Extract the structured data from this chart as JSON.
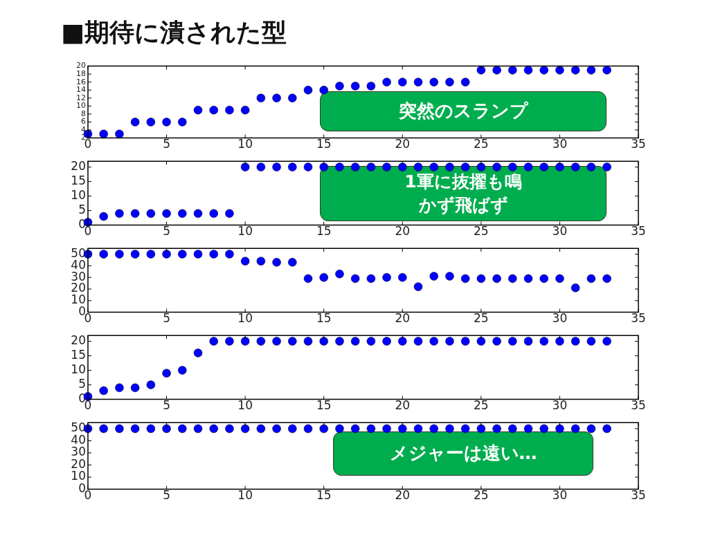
{
  "chart_data": [
    {
      "type": "scatter",
      "title": "■期待に潰された型",
      "x": [
        0,
        1,
        2,
        3,
        4,
        5,
        6,
        7,
        8,
        9,
        10,
        11,
        12,
        13,
        14,
        15,
        16,
        17,
        18,
        19,
        20,
        21,
        22,
        23,
        24,
        25,
        26,
        27,
        28,
        29,
        30,
        31,
        32,
        33
      ],
      "series": [
        {
          "color": "#0000ff",
          "values": [
            3,
            3,
            3,
            6,
            6,
            6,
            6,
            9,
            9,
            9,
            9,
            12,
            12,
            12,
            14,
            14,
            15,
            15,
            15,
            16,
            16,
            16,
            16,
            16,
            16,
            19,
            19,
            19,
            19,
            19,
            19,
            19,
            19,
            19
          ]
        }
      ],
      "xlim": [
        0,
        35
      ],
      "xticks": [
        0,
        5,
        10,
        15,
        20,
        25,
        30,
        35
      ],
      "ylim": [
        2,
        20
      ],
      "yticks": [
        2,
        4,
        6,
        8,
        10,
        12,
        14,
        16,
        18,
        20
      ],
      "marker": "circle",
      "grid": false,
      "legend": false,
      "annotations": [
        "突然のスランプ"
      ]
    },
    {
      "type": "scatter",
      "x": [
        0,
        1,
        2,
        3,
        4,
        5,
        6,
        7,
        8,
        9,
        10,
        11,
        12,
        13,
        14,
        15,
        16,
        17,
        18,
        19,
        20,
        21,
        22,
        23,
        24,
        25,
        26,
        27,
        28,
        29,
        30,
        31,
        32,
        33
      ],
      "series": [
        {
          "color": "#0000ff",
          "values": [
            1,
            3,
            4,
            4,
            4,
            4,
            4,
            4,
            4,
            4,
            20,
            20,
            20,
            20,
            20,
            20,
            20,
            20,
            20,
            20,
            20,
            20,
            20,
            20,
            20,
            20,
            20,
            20,
            20,
            20,
            20,
            20,
            20,
            20
          ]
        }
      ],
      "xlim": [
        0,
        35
      ],
      "xticks": [
        0,
        5,
        10,
        15,
        20,
        25,
        30,
        35
      ],
      "ylim": [
        0,
        22
      ],
      "yticks": [
        0,
        5,
        10,
        15,
        20
      ],
      "marker": "circle",
      "grid": false,
      "legend": false,
      "annotations": [
        "1軍に抜擢も鳴かず飛ばず"
      ]
    },
    {
      "type": "scatter",
      "x": [
        0,
        1,
        2,
        3,
        4,
        5,
        6,
        7,
        8,
        9,
        10,
        11,
        12,
        13,
        14,
        15,
        16,
        17,
        18,
        19,
        20,
        21,
        22,
        23,
        24,
        25,
        26,
        27,
        28,
        29,
        30,
        31,
        32,
        33
      ],
      "series": [
        {
          "color": "#0000ff",
          "values": [
            50,
            50,
            50,
            50,
            50,
            50,
            50,
            50,
            50,
            50,
            44,
            44,
            43,
            43,
            29,
            30,
            33,
            29,
            29,
            30,
            30,
            22,
            31,
            31,
            29,
            29,
            29,
            29,
            29,
            29,
            29,
            21,
            29,
            29
          ]
        }
      ],
      "xlim": [
        0,
        35
      ],
      "xticks": [
        0,
        5,
        10,
        15,
        20,
        25,
        30,
        35
      ],
      "ylim": [
        0,
        55
      ],
      "yticks": [
        0,
        10,
        20,
        30,
        40,
        50
      ],
      "marker": "circle",
      "grid": false,
      "legend": false
    },
    {
      "type": "scatter",
      "x": [
        0,
        1,
        2,
        3,
        4,
        5,
        6,
        7,
        8,
        9,
        10,
        11,
        12,
        13,
        14,
        15,
        16,
        17,
        18,
        19,
        20,
        21,
        22,
        23,
        24,
        25,
        26,
        27,
        28,
        29,
        30,
        31,
        32,
        33
      ],
      "series": [
        {
          "color": "#0000ff",
          "values": [
            1,
            3,
            4,
            4,
            5,
            9,
            10,
            16,
            20,
            20,
            20,
            20,
            20,
            20,
            20,
            20,
            20,
            20,
            20,
            20,
            20,
            20,
            20,
            20,
            20,
            20,
            20,
            20,
            20,
            20,
            20,
            20,
            20,
            20
          ]
        }
      ],
      "xlim": [
        0,
        35
      ],
      "xticks": [
        0,
        5,
        10,
        15,
        20,
        25,
        30,
        35
      ],
      "ylim": [
        0,
        22
      ],
      "yticks": [
        0,
        5,
        10,
        15,
        20
      ],
      "marker": "circle",
      "grid": false,
      "legend": false
    },
    {
      "type": "scatter",
      "x": [
        0,
        1,
        2,
        3,
        4,
        5,
        6,
        7,
        8,
        9,
        10,
        11,
        12,
        13,
        14,
        15,
        16,
        17,
        18,
        19,
        20,
        21,
        22,
        23,
        24,
        25,
        26,
        27,
        28,
        29,
        30,
        31,
        32,
        33
      ],
      "series": [
        {
          "color": "#0000ff",
          "values": [
            50,
            50,
            50,
            50,
            50,
            50,
            50,
            50,
            50,
            50,
            50,
            50,
            50,
            50,
            50,
            50,
            50,
            50,
            50,
            50,
            50,
            50,
            50,
            50,
            50,
            50,
            50,
            50,
            50,
            50,
            50,
            50,
            50,
            50
          ]
        }
      ],
      "xlim": [
        0,
        35
      ],
      "xticks": [
        0,
        5,
        10,
        15,
        20,
        25,
        30,
        35
      ],
      "ylim": [
        0,
        55
      ],
      "yticks": [
        0,
        10,
        20,
        30,
        40,
        50
      ],
      "marker": "circle",
      "grid": false,
      "legend": false,
      "annotations": [
        "メジャーは遠い…"
      ]
    }
  ]
}
